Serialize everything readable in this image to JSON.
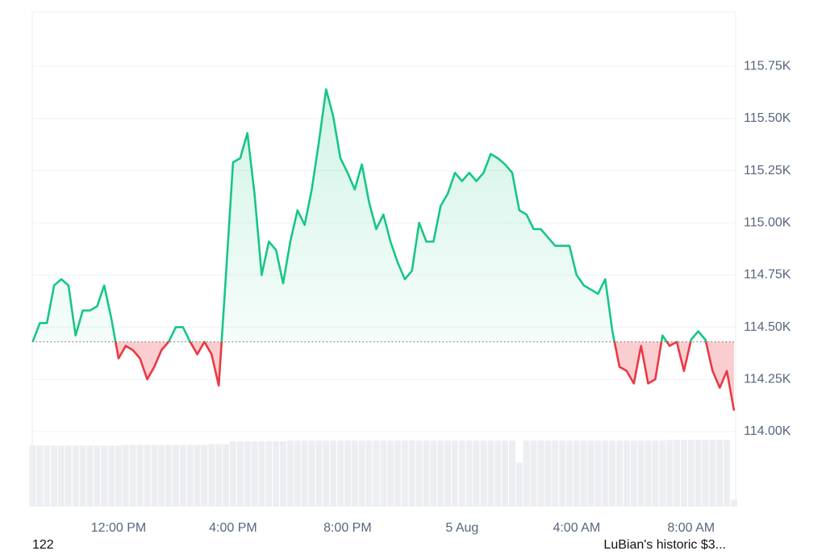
{
  "chart_data": {
    "type": "line",
    "categories": [
      null,
      null,
      null,
      null,
      null,
      null,
      null,
      null,
      null,
      null,
      null,
      null,
      "12:00 PM",
      null,
      null,
      null,
      null,
      null,
      null,
      null,
      null,
      null,
      null,
      null,
      null,
      null,
      null,
      null,
      "4:00 PM",
      null,
      null,
      null,
      null,
      null,
      null,
      null,
      null,
      null,
      null,
      null,
      null,
      null,
      null,
      null,
      "8:00 PM",
      null,
      null,
      null,
      null,
      null,
      null,
      null,
      null,
      null,
      null,
      null,
      null,
      null,
      null,
      null,
      "5 Aug",
      null,
      null,
      null,
      null,
      null,
      null,
      null,
      null,
      null,
      null,
      null,
      null,
      null,
      null,
      null,
      "4:00 AM",
      null,
      null,
      null,
      null,
      null,
      null,
      null,
      null,
      null,
      null,
      null,
      null,
      null,
      null,
      null,
      "8:00 AM",
      null,
      null,
      null,
      null,
      null,
      null
    ],
    "values": [
      114.43,
      114.52,
      114.52,
      114.7,
      114.73,
      114.7,
      114.46,
      114.58,
      114.58,
      114.6,
      114.7,
      114.54,
      114.35,
      114.41,
      114.39,
      114.35,
      114.25,
      114.31,
      114.39,
      114.43,
      114.5,
      114.5,
      114.43,
      114.37,
      114.43,
      114.37,
      114.22,
      114.75,
      115.29,
      115.31,
      115.43,
      115.14,
      114.75,
      114.91,
      114.87,
      114.71,
      114.91,
      115.06,
      114.99,
      115.16,
      115.39,
      115.64,
      115.51,
      115.31,
      115.24,
      115.16,
      115.28,
      115.1,
      114.97,
      115.04,
      114.91,
      114.81,
      114.73,
      114.77,
      115.0,
      114.91,
      114.91,
      115.08,
      115.14,
      115.24,
      115.2,
      115.24,
      115.2,
      115.24,
      115.33,
      115.31,
      115.28,
      115.24,
      115.06,
      115.04,
      114.97,
      114.97,
      114.93,
      114.89,
      114.89,
      114.89,
      114.75,
      114.7,
      114.68,
      114.66,
      114.73,
      114.48,
      114.31,
      114.29,
      114.23,
      114.41,
      114.23,
      114.25,
      114.46,
      114.41,
      114.43,
      114.29,
      114.44,
      114.48,
      114.44,
      114.29,
      114.21,
      114.29,
      114.1
    ],
    "baseline": 114.43,
    "up_color": "#16c784",
    "down_color": "#ea3943",
    "volume": [
      86,
      86,
      86,
      86,
      86,
      86,
      86,
      86,
      86,
      86,
      86,
      86,
      86,
      87,
      87,
      87,
      87,
      87,
      87,
      87,
      87,
      87,
      87,
      87,
      87,
      88,
      88,
      88,
      92,
      92,
      92,
      92,
      92,
      92,
      92,
      92,
      93,
      93,
      93,
      93,
      93,
      93,
      93,
      93,
      93,
      93,
      93,
      93,
      93,
      93,
      93,
      93,
      93,
      93,
      93,
      93,
      93,
      93,
      93,
      93,
      93,
      93,
      93,
      93,
      93,
      93,
      93,
      93,
      62,
      93,
      93,
      93,
      93,
      93,
      93,
      93,
      93,
      93,
      93,
      93,
      93,
      93,
      93,
      93,
      93,
      93,
      93,
      93,
      93,
      94,
      94,
      94,
      94,
      94,
      94,
      94,
      94,
      94,
      10
    ],
    "volume_lim": [
      0,
      100
    ],
    "volume_color": "#eceef1",
    "ylim": [
      113.64,
      116.01
    ],
    "yticks": [
      {
        "value": 114,
        "label": "114.00K"
      },
      {
        "value": 114.25,
        "label": "114.25K"
      },
      {
        "value": 114.5,
        "label": "114.50K"
      },
      {
        "value": 114.75,
        "label": "114.75K"
      },
      {
        "value": 115,
        "label": "115.00K"
      },
      {
        "value": 115.25,
        "label": "115.25K"
      },
      {
        "value": 115.5,
        "label": "115.50K"
      },
      {
        "value": 115.75,
        "label": "115.75K"
      }
    ],
    "grid": true,
    "footer_left": "122",
    "footer_right": "LuBian's historic $3..."
  }
}
